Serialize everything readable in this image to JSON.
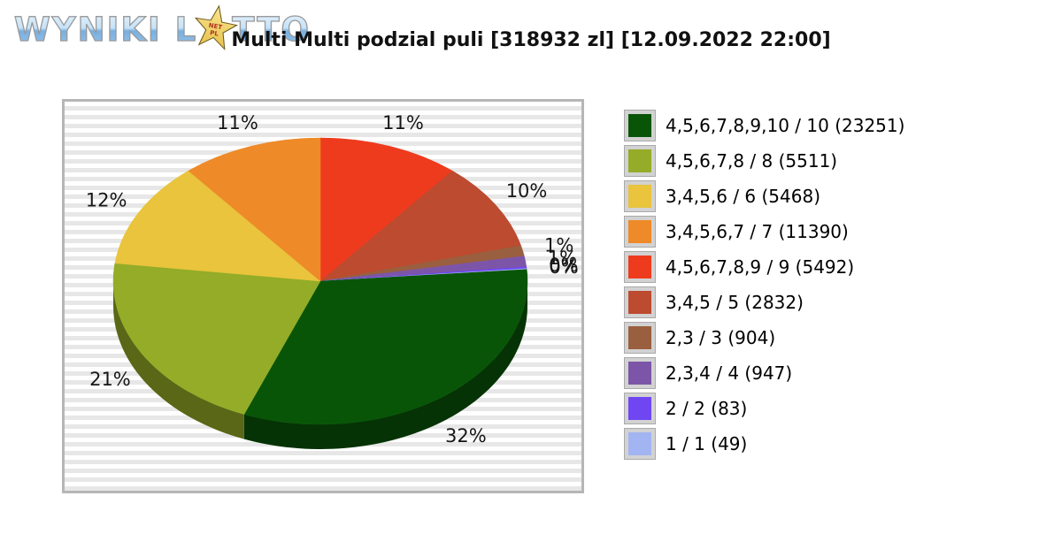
{
  "logo": {
    "text_before_star": "WYNIKI L",
    "text_after_star": "TTO",
    "star_text_top": "NET",
    "star_text_bottom": "PL"
  },
  "header": {
    "title": "Multi Multi podzial puli [318932 zl] [12.09.2022 22:00]"
  },
  "chart_data": {
    "type": "pie",
    "title": "Multi Multi podzial puli [318932 zl] [12.09.2022 22:00]",
    "legend_position": "right",
    "start_angle_deg": -90,
    "direction": "clockwise",
    "slices": [
      {
        "label": "4,5,6,7,8,9,10 / 10",
        "winners": 23251,
        "legend_text": "4,5,6,7,8,9,10 / 10 (23251)",
        "percent_label": "32%",
        "percent_value": 32.3,
        "color": "#085508"
      },
      {
        "label": "4,5,6,7,8 / 8",
        "winners": 5511,
        "legend_text": "4,5,6,7,8 / 8 (5511)",
        "percent_label": "21%",
        "percent_value": 21.0,
        "color": "#94AC27"
      },
      {
        "label": "3,4,5,6 / 6",
        "winners": 5468,
        "legend_text": "3,4,5,6 / 6 (5468)",
        "percent_label": "12%",
        "percent_value": 12.0,
        "color": "#E9C43C"
      },
      {
        "label": "3,4,5,6,7 / 7",
        "winners": 11390,
        "legend_text": "3,4,5,6,7 / 7 (11390)",
        "percent_label": "11%",
        "percent_value": 11.0,
        "color": "#EE8A28"
      },
      {
        "label": "4,5,6,7,8,9 / 9",
        "winners": 5492,
        "legend_text": "4,5,6,7,8,9 / 9 (5492)",
        "percent_label": "11%",
        "percent_value": 11.0,
        "color": "#EE3B1E"
      },
      {
        "label": "3,4,5 / 5",
        "winners": 2832,
        "legend_text": "3,4,5 / 5 (2832)",
        "percent_label": "10%",
        "percent_value": 10.0,
        "color": "#BC4B30"
      },
      {
        "label": "2,3 / 3",
        "winners": 904,
        "legend_text": "2,3 / 3 (904)",
        "percent_label": "1%",
        "percent_value": 1.2,
        "color": "#9A5F3E"
      },
      {
        "label": "2,3,4 / 4",
        "winners": 947,
        "legend_text": "2,3,4 / 4 (947)",
        "percent_label": "1%",
        "percent_value": 1.2,
        "color": "#7D55A8"
      },
      {
        "label": "2 / 2",
        "winners": 83,
        "legend_text": "2 / 2 (83)",
        "percent_label": "0%",
        "percent_value": 0.2,
        "color": "#6F46F2"
      },
      {
        "label": "1 / 1",
        "winners": 49,
        "legend_text": "1 / 1 (49)",
        "percent_label": "0%",
        "percent_value": 0.1,
        "color": "#A2B4F2"
      }
    ],
    "draw_order": [
      4,
      5,
      6,
      7,
      8,
      9,
      0,
      1,
      2,
      3
    ]
  },
  "colors": {
    "panel_border": "#b6b6b6",
    "panel_stripe_light": "#ffffff",
    "panel_stripe_dark": "#e7e7e7",
    "label_text": "#161616",
    "legend_swatch_border": "#d2d2d2",
    "logo_blue": "#7fb5e6",
    "star_yellow": "#e6c14a"
  }
}
